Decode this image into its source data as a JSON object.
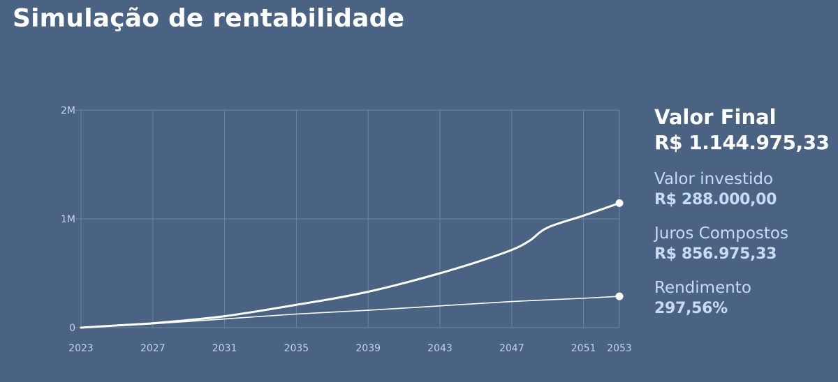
{
  "header": {
    "title": "Simulação de rentabilidade"
  },
  "summary": {
    "final_label": "Valor Final",
    "final_value": "R$ 1.144.975,33",
    "invested_label": "Valor investido",
    "invested_value": "R$ 288.000,00",
    "interest_label": "Juros Compostos",
    "interest_value": "R$ 856.975,33",
    "yield_label": "Rendimento",
    "yield_value": "297,56%"
  },
  "chart_data": {
    "type": "line",
    "title": "",
    "xlabel": "",
    "ylabel": "",
    "x_ticks": [
      "2023",
      "2027",
      "2031",
      "2035",
      "2039",
      "2043",
      "2047",
      "2051",
      "2053"
    ],
    "y_ticks": [
      "0",
      "1M",
      "2M"
    ],
    "xlim": [
      2023,
      2053
    ],
    "ylim": [
      0,
      2000000
    ],
    "grid": true,
    "colors": {
      "background": "#4a6383",
      "grid": "#6a84a4",
      "line": "#ffffff",
      "text": "#c2d3eb"
    },
    "series": [
      {
        "x": [
          2023,
          2025,
          2027,
          2029,
          2031,
          2033,
          2035,
          2037,
          2039,
          2041,
          2043,
          2045,
          2047,
          2048,
          2049,
          2051,
          2053
        ],
        "values": [
          0,
          20000,
          40000,
          70000,
          105000,
          155000,
          210000,
          265000,
          330000,
          410000,
          500000,
          600000,
          715000,
          800000,
          920000,
          1030000,
          1144975
        ]
      },
      {
        "x": [
          2023,
          2027,
          2031,
          2035,
          2039,
          2043,
          2047,
          2051,
          2053
        ],
        "values": [
          0,
          35000,
          80000,
          125000,
          160000,
          200000,
          240000,
          270000,
          288000
        ]
      }
    ]
  }
}
